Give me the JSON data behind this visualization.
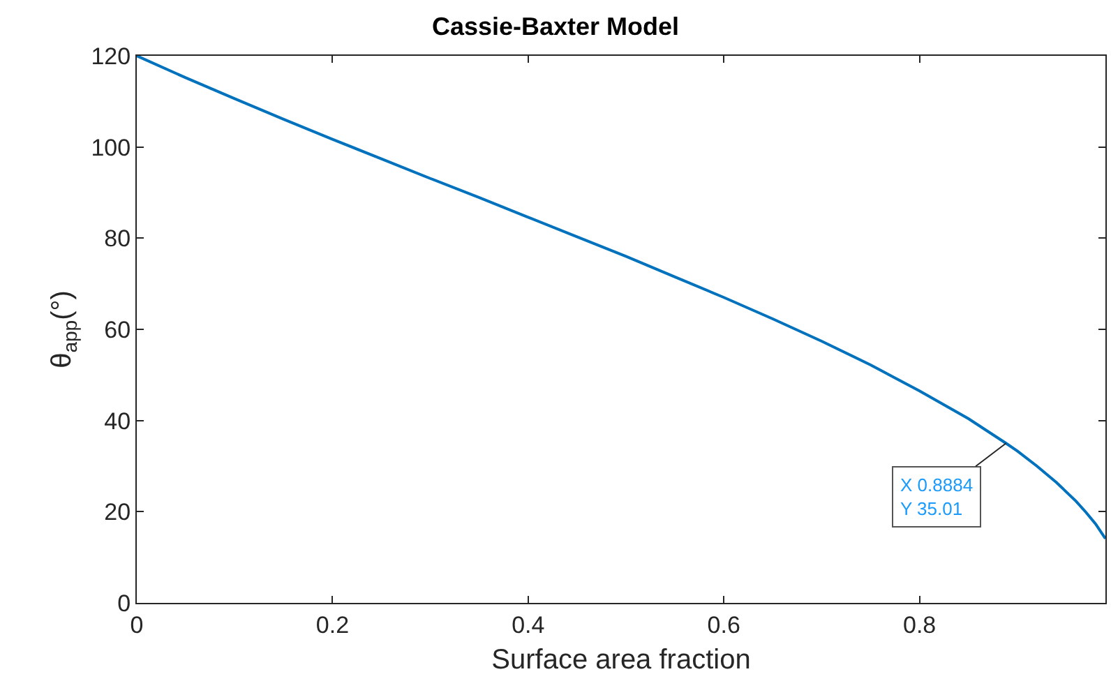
{
  "chart_data": {
    "type": "line",
    "title": "Cassie-Baxter Model",
    "xlabel": "Surface area fraction",
    "ylabel": "θ$_{app}$(°)",
    "x": [
      0,
      0.05,
      0.1,
      0.15,
      0.2,
      0.25,
      0.3,
      0.35,
      0.4,
      0.45,
      0.5,
      0.55,
      0.6,
      0.65,
      0.7,
      0.75,
      0.8,
      0.85,
      0.8884,
      0.9,
      0.92,
      0.94,
      0.96,
      0.97,
      0.98,
      0.99
    ],
    "series": [
      {
        "color": "#0072bd",
        "values": [
          120,
          115.2,
          110.6,
          106.1,
          101.7,
          97.4,
          93.1,
          88.9,
          84.6,
          80.3,
          76.0,
          71.5,
          67.0,
          62.3,
          57.4,
          52.2,
          46.5,
          40.4,
          35.01,
          33.3,
          30.0,
          26.4,
          22.3,
          19.9,
          17.3,
          14.1
        ]
      }
    ],
    "xlim": [
      0,
      0.99
    ],
    "ylim": [
      0,
      120
    ],
    "xticks": [
      0,
      0.2,
      0.4,
      0.6,
      0.8
    ],
    "yticks": [
      0,
      20,
      40,
      60,
      80,
      100,
      120
    ],
    "grid": false,
    "marker": "none",
    "line_style": "solid",
    "annotations": [
      {
        "text": "X 0.8884\nY 35.01",
        "x": 0.8884,
        "y": 35.01
      }
    ]
  }
}
